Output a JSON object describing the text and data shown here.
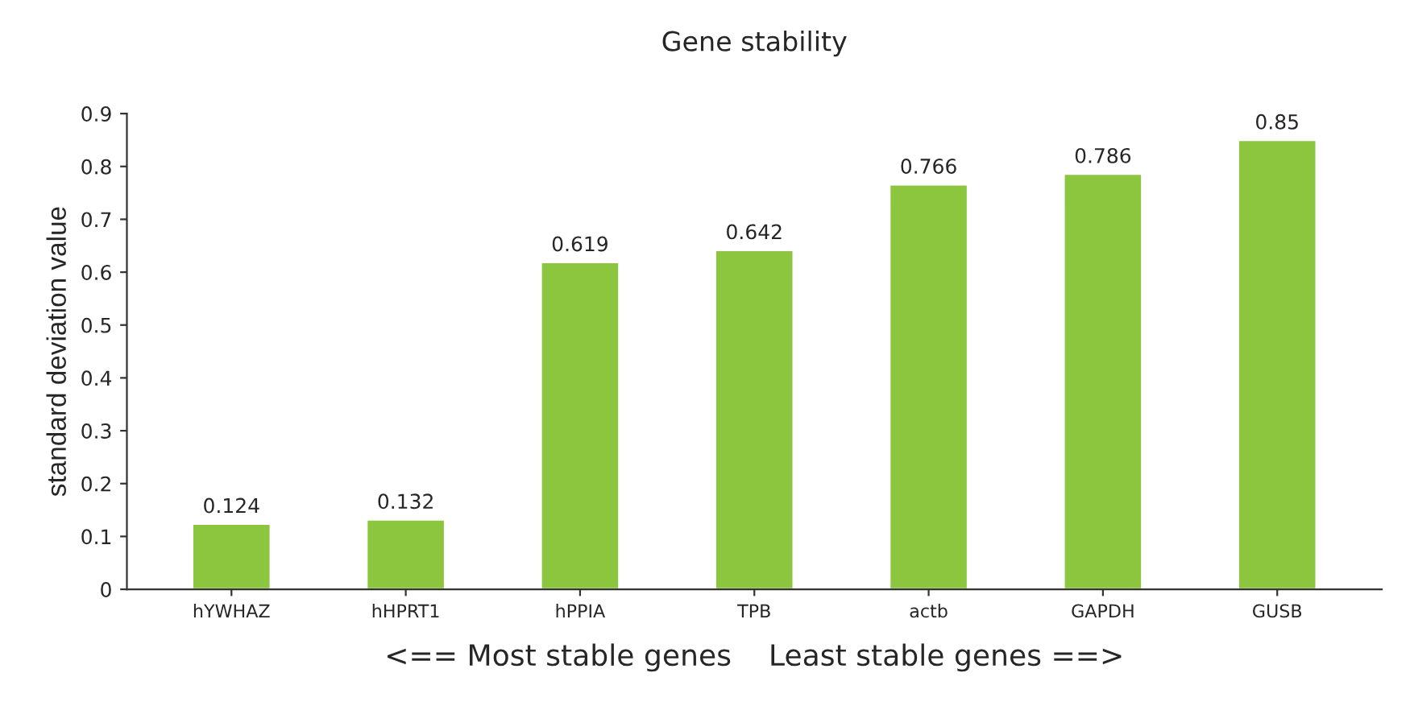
{
  "chart_data": {
    "type": "bar",
    "title": "Gene stability",
    "categories": [
      "hYWHAZ",
      "hHPRT1",
      "hPPIA",
      "TPB",
      "actb",
      "GAPDH",
      "GUSB"
    ],
    "values": [
      0.124,
      0.132,
      0.619,
      0.642,
      0.766,
      0.786,
      0.85
    ],
    "value_labels": [
      "0.124",
      "0.132",
      "0.619",
      "0.642",
      "0.766",
      "0.786",
      "0.85"
    ],
    "color": "#8cc63f",
    "xlabel": "<== Most stable genes    Least stable genes ==>",
    "ylabel": "standard deviation value",
    "ylim": [
      0,
      0.9
    ],
    "yticks": [
      {
        "value": 0,
        "label": "0"
      },
      0.1,
      0.2,
      0.3,
      0.4,
      0.5,
      0.6,
      0.7,
      0.8,
      0.9
    ],
    "grid": false,
    "legend": false
  }
}
